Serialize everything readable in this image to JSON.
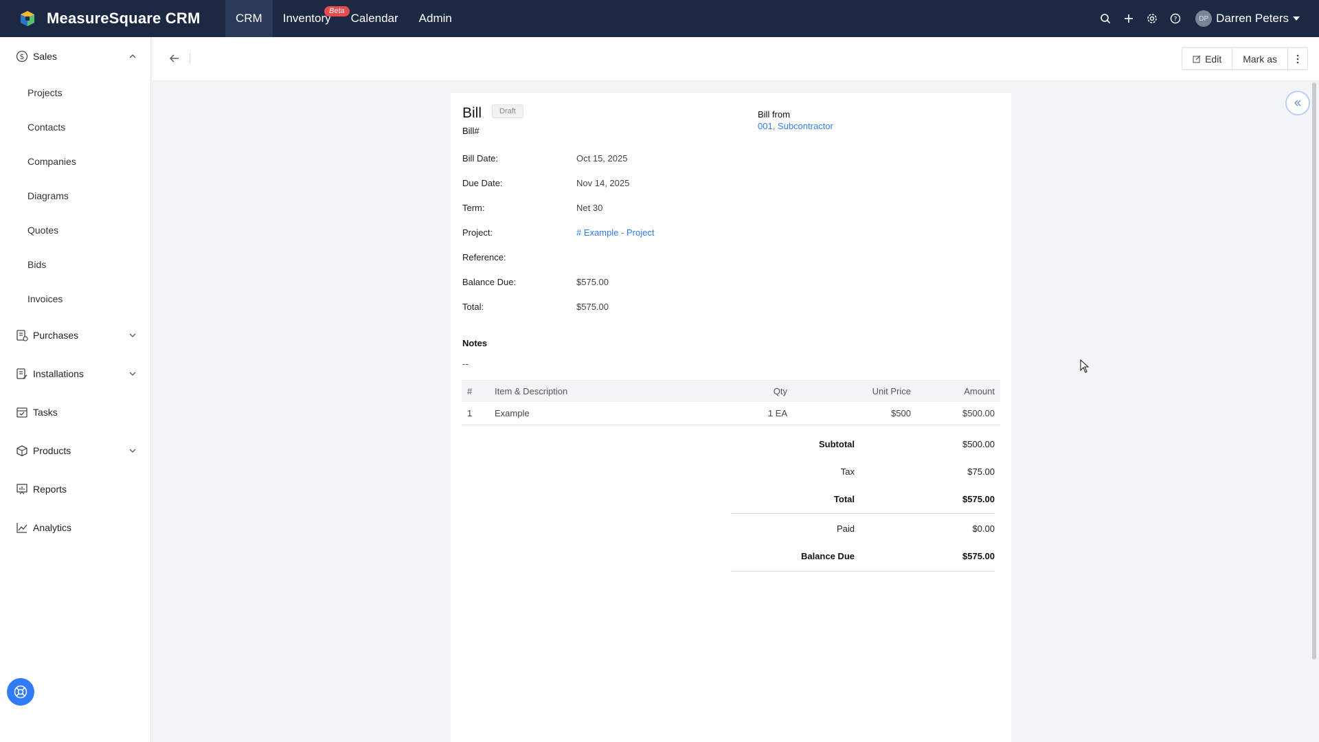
{
  "app": {
    "name": "MeasureSquare CRM"
  },
  "topnav": {
    "items": [
      {
        "label": "CRM"
      },
      {
        "label": "Inventory",
        "badge": "Beta"
      },
      {
        "label": "Calendar"
      },
      {
        "label": "Admin"
      }
    ],
    "user": {
      "initials": "DP",
      "name": "Darren Peters"
    }
  },
  "sidebar": {
    "sales": {
      "label": "Sales",
      "items": [
        "Projects",
        "Contacts",
        "Companies",
        "Diagrams",
        "Quotes",
        "Bids",
        "Invoices"
      ]
    },
    "purchases": "Purchases",
    "installations": "Installations",
    "tasks": "Tasks",
    "products": "Products",
    "reports": "Reports",
    "analytics": "Analytics"
  },
  "toolbar": {
    "edit_label": "Edit",
    "mark_as_label": "Mark as"
  },
  "bill": {
    "title": "Bill",
    "status": "Draft",
    "number_label": "Bill#",
    "from_label": "Bill from",
    "from_value": "001, Subcontractor",
    "fields": [
      {
        "label": "Bill Date:",
        "value": "Oct 15, 2025"
      },
      {
        "label": "Due Date:",
        "value": "Nov 14, 2025"
      },
      {
        "label": "Term:",
        "value": "Net 30"
      },
      {
        "label": "Project:",
        "value": "# Example - Project"
      },
      {
        "label": "Reference:",
        "value": ""
      },
      {
        "label": "Balance Due:",
        "value": "$575.00"
      },
      {
        "label": "Total:",
        "value": "$575.00"
      }
    ],
    "notes_label": "Notes",
    "notes_value": "--",
    "items_table": {
      "headers": [
        "#",
        "Item & Description",
        "Qty",
        "Unit Price",
        "Amount"
      ],
      "rows": [
        [
          "1",
          "Example",
          "1 EA",
          "$500",
          "$500.00"
        ]
      ]
    },
    "totals": {
      "subtotal": {
        "label": "Subtotal",
        "value": "$500.00"
      },
      "tax": {
        "label": "Tax",
        "value": "$75.00"
      },
      "total": {
        "label": "Total",
        "value": "$575.00"
      },
      "paid": {
        "label": "Paid",
        "value": "$0.00"
      },
      "balance_due": {
        "label": "Balance Due",
        "value": "$575.00"
      }
    }
  },
  "colors": {
    "topbar": "#1d2942",
    "accent": "#2f7cf6",
    "badge": "#e74c4c"
  }
}
